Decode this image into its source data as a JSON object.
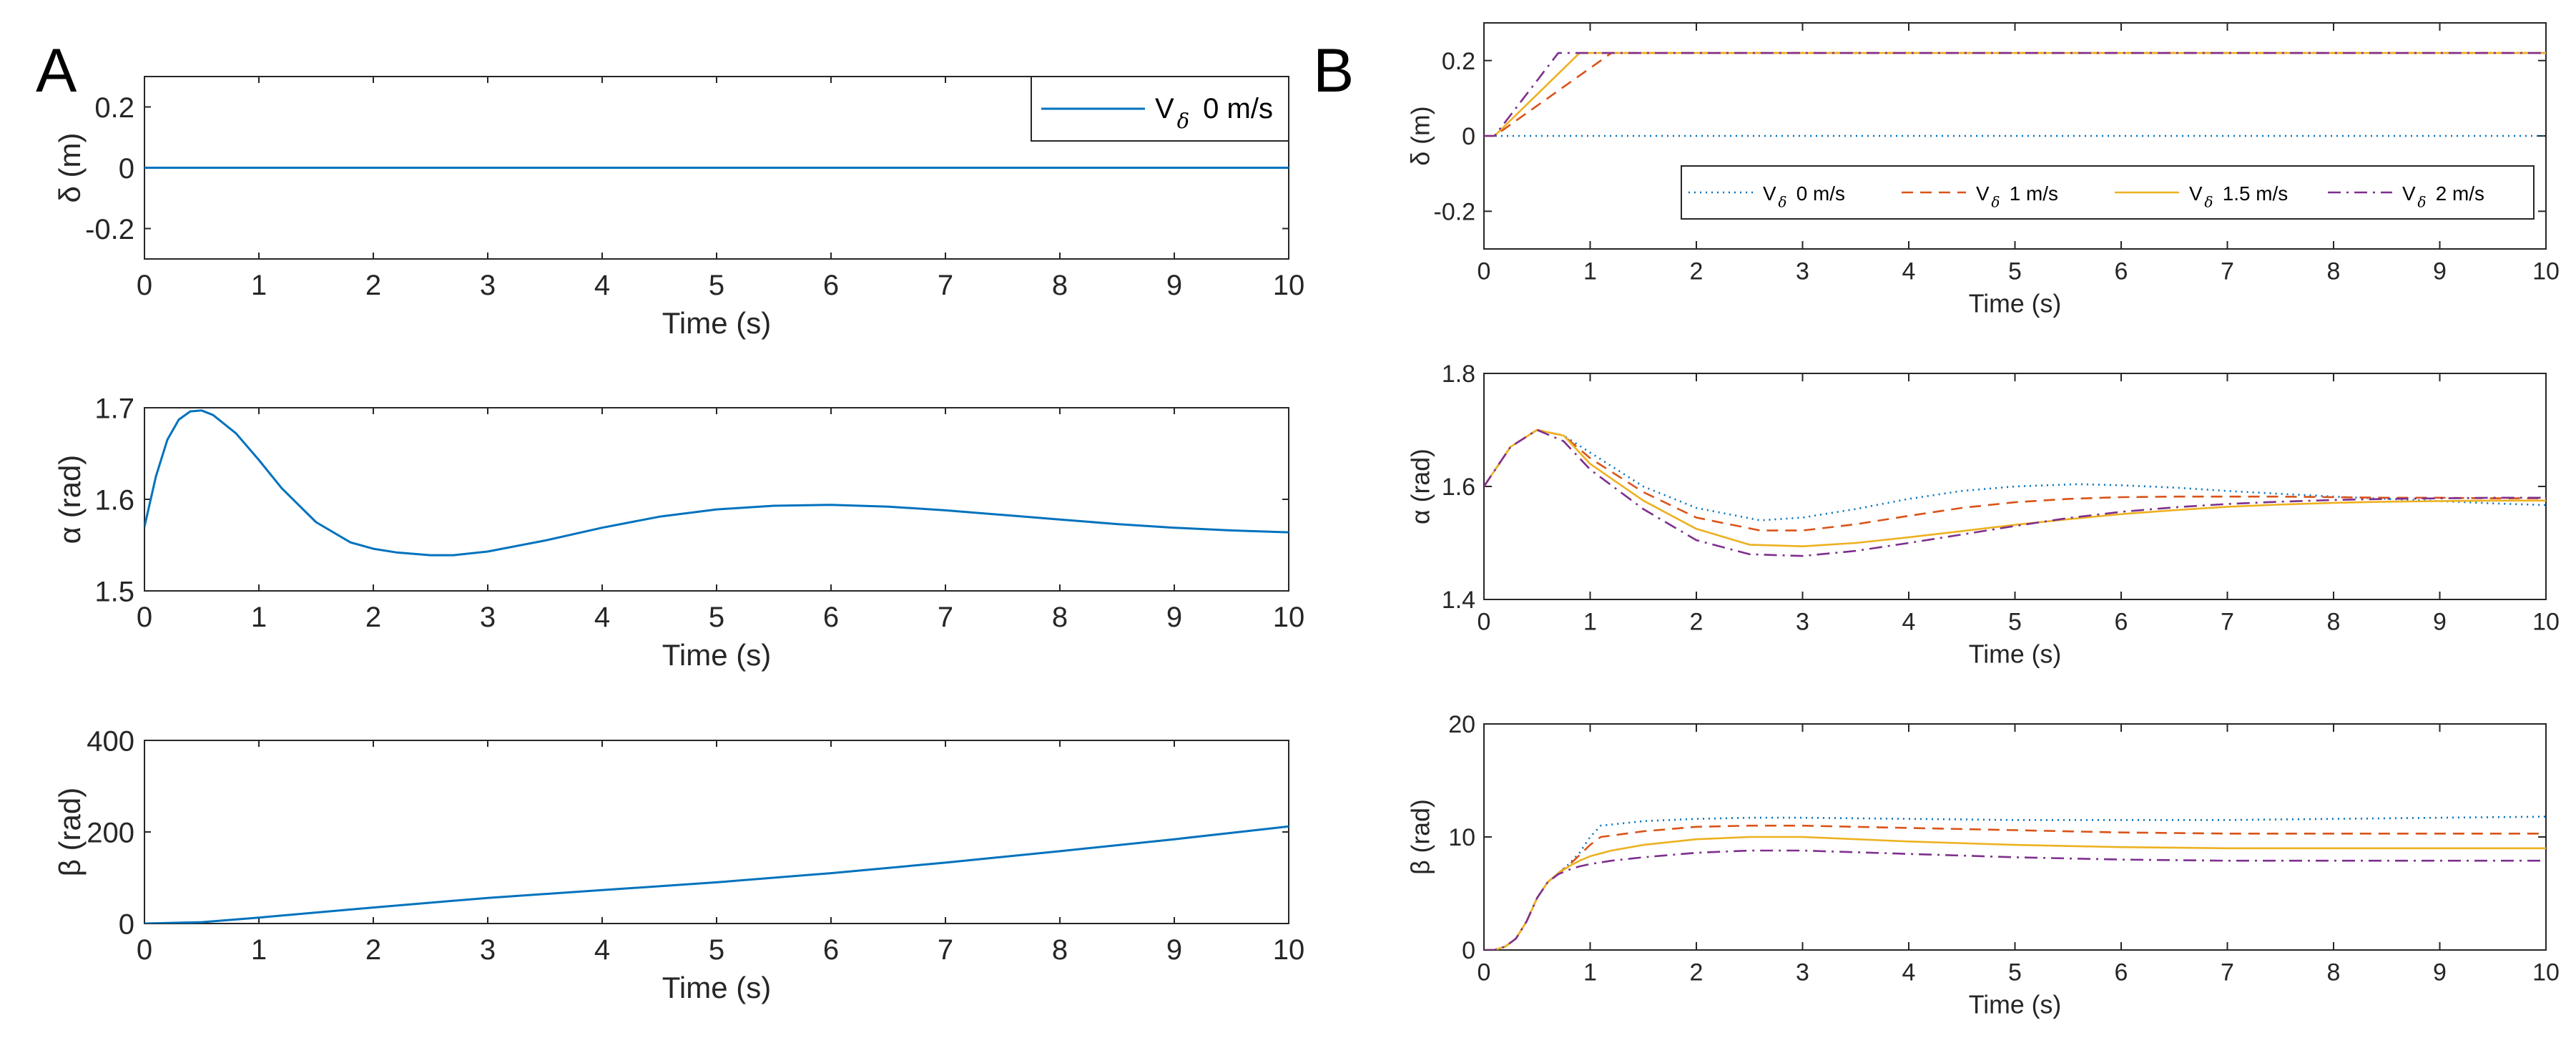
{
  "figure": {
    "panel_labels": [
      "A",
      "B"
    ],
    "series_colors": [
      "#0072BD",
      "#D95319",
      "#EDB120",
      "#7E2F8E"
    ]
  },
  "chart_data": [
    {
      "id": "A1",
      "panel": "A",
      "type": "line",
      "xlabel": "Time (s)",
      "ylabel": "δ (m)",
      "xlim": [
        0,
        10
      ],
      "ylim": [
        -0.3,
        0.3
      ],
      "xticks": [
        0,
        1,
        2,
        3,
        4,
        5,
        6,
        7,
        8,
        9,
        10
      ],
      "yticks": [
        -0.2,
        0,
        0.2
      ],
      "ytick_labels": [
        "-0.2",
        "0",
        "0.2"
      ],
      "legend": {
        "placement": "top-right",
        "entries": [
          "V δ 0 m/s"
        ]
      },
      "series": [
        {
          "name": "V δ 0 m/s",
          "color": "#0072BD",
          "style": "solid",
          "x": [
            0,
            10
          ],
          "y": [
            0,
            0
          ]
        }
      ]
    },
    {
      "id": "A2",
      "panel": "A",
      "type": "line",
      "xlabel": "Time (s)",
      "ylabel": "α (rad)",
      "xlim": [
        0,
        10
      ],
      "ylim": [
        1.5,
        1.7
      ],
      "xticks": [
        0,
        1,
        2,
        3,
        4,
        5,
        6,
        7,
        8,
        9,
        10
      ],
      "yticks": [
        1.5,
        1.6,
        1.7
      ],
      "ytick_labels": [
        "1.5",
        "1.6",
        "1.7"
      ],
      "series": [
        {
          "name": "V δ 0 m/s",
          "color": "#0072BD",
          "style": "solid",
          "x": [
            0,
            0.1,
            0.2,
            0.3,
            0.4,
            0.5,
            0.6,
            0.8,
            1.0,
            1.2,
            1.5,
            1.8,
            2.0,
            2.2,
            2.5,
            2.7,
            3.0,
            3.5,
            4.0,
            4.5,
            5.0,
            5.5,
            6.0,
            6.5,
            7.0,
            7.5,
            8.0,
            8.5,
            9.0,
            9.5,
            10.0
          ],
          "y": [
            1.57,
            1.625,
            1.665,
            1.687,
            1.696,
            1.697,
            1.692,
            1.672,
            1.643,
            1.612,
            1.575,
            1.553,
            1.546,
            1.542,
            1.539,
            1.539,
            1.543,
            1.555,
            1.569,
            1.581,
            1.589,
            1.593,
            1.594,
            1.592,
            1.588,
            1.583,
            1.578,
            1.573,
            1.569,
            1.566,
            1.564
          ]
        }
      ]
    },
    {
      "id": "A3",
      "panel": "A",
      "type": "line",
      "xlabel": "Time (s)",
      "ylabel": "β (rad)",
      "xlim": [
        0,
        10
      ],
      "ylim": [
        0,
        400
      ],
      "xticks": [
        0,
        1,
        2,
        3,
        4,
        5,
        6,
        7,
        8,
        9,
        10
      ],
      "yticks": [
        0,
        200,
        400
      ],
      "ytick_labels": [
        "0",
        "200",
        "400"
      ],
      "series": [
        {
          "name": "V δ 0 m/s",
          "color": "#0072BD",
          "style": "solid",
          "x": [
            0,
            0.5,
            1,
            1.5,
            2,
            3,
            4,
            5,
            6,
            7,
            8,
            9,
            10
          ],
          "y": [
            0,
            3,
            13,
            24,
            35,
            56,
            73,
            90,
            110,
            133,
            158,
            184,
            212
          ]
        }
      ]
    },
    {
      "id": "B1",
      "panel": "B",
      "type": "line",
      "xlabel": "Time (s)",
      "ylabel": "δ (m)",
      "xlim": [
        0,
        10
      ],
      "ylim": [
        -0.3,
        0.3
      ],
      "xticks": [
        0,
        1,
        2,
        3,
        4,
        5,
        6,
        7,
        8,
        9,
        10
      ],
      "yticks": [
        -0.2,
        0,
        0.2
      ],
      "ytick_labels": [
        "-0.2",
        "0",
        "0.2"
      ],
      "legend": {
        "placement": "bottom-inside",
        "entries": [
          "V δ 0 m/s",
          "V δ 1 m/s",
          "V δ 1.5 m/s",
          "V δ 2 m/s"
        ]
      },
      "series": [
        {
          "name": "V δ 0 m/s",
          "color": "#0072BD",
          "style": "dotted",
          "x": [
            0,
            10
          ],
          "y": [
            0,
            0
          ]
        },
        {
          "name": "V δ 1 m/s",
          "color": "#D95319",
          "style": "dashed",
          "x": [
            0,
            0.1,
            1.2,
            10
          ],
          "y": [
            0,
            0,
            0.22,
            0.22
          ]
        },
        {
          "name": "V δ 1.5 m/s",
          "color": "#EDB120",
          "style": "solid",
          "x": [
            0,
            0.1,
            0.9,
            10
          ],
          "y": [
            0,
            0,
            0.22,
            0.22
          ]
        },
        {
          "name": "V δ 2 m/s",
          "color": "#7E2F8E",
          "style": "dashdot",
          "x": [
            0,
            0.1,
            0.7,
            10
          ],
          "y": [
            0,
            0,
            0.22,
            0.22
          ]
        }
      ]
    },
    {
      "id": "B2",
      "panel": "B",
      "type": "line",
      "xlabel": "Time (s)",
      "ylabel": "α (rad)",
      "xlim": [
        0,
        10
      ],
      "ylim": [
        1.4,
        1.8
      ],
      "xticks": [
        0,
        1,
        2,
        3,
        4,
        5,
        6,
        7,
        8,
        9,
        10
      ],
      "yticks": [
        1.4,
        1.6,
        1.8
      ],
      "ytick_labels": [
        "1.4",
        "1.6",
        "1.8"
      ],
      "series": [
        {
          "name": "V δ 0 m/s",
          "color": "#0072BD",
          "style": "dotted",
          "x": [
            0,
            0.25,
            0.5,
            0.75,
            1.0,
            1.5,
            2.0,
            2.6,
            3.0,
            3.5,
            4.0,
            4.5,
            5.0,
            5.6,
            6.0,
            6.5,
            7.0,
            7.5,
            8.0,
            8.5,
            9.0,
            9.5,
            10.0
          ],
          "y": [
            1.6,
            1.67,
            1.7,
            1.69,
            1.66,
            1.6,
            1.562,
            1.54,
            1.545,
            1.56,
            1.578,
            1.592,
            1.6,
            1.604,
            1.602,
            1.598,
            1.592,
            1.587,
            1.582,
            1.578,
            1.574,
            1.57,
            1.567
          ]
        },
        {
          "name": "V δ 1 m/s",
          "color": "#D95319",
          "style": "dashed",
          "x": [
            0,
            0.25,
            0.5,
            0.75,
            1.0,
            1.5,
            2.0,
            2.6,
            3.0,
            3.5,
            4.0,
            4.5,
            5.0,
            5.5,
            6.0,
            6.5,
            7.0,
            7.5,
            8.0,
            8.5,
            9.0,
            9.5,
            10.0
          ],
          "y": [
            1.6,
            1.67,
            1.7,
            1.69,
            1.65,
            1.59,
            1.545,
            1.522,
            1.522,
            1.533,
            1.548,
            1.562,
            1.572,
            1.578,
            1.581,
            1.582,
            1.582,
            1.582,
            1.581,
            1.58,
            1.58,
            1.579,
            1.579
          ]
        },
        {
          "name": "V δ 1.5 m/s",
          "color": "#EDB120",
          "style": "solid",
          "x": [
            0,
            0.25,
            0.5,
            0.75,
            1.0,
            1.5,
            2.0,
            2.5,
            3.0,
            3.5,
            4.0,
            4.5,
            5.0,
            5.5,
            6.0,
            6.5,
            7.0,
            7.5,
            8.0,
            8.5,
            9.0,
            9.5,
            10.0
          ],
          "y": [
            1.6,
            1.67,
            1.7,
            1.69,
            1.64,
            1.575,
            1.525,
            1.497,
            1.494,
            1.5,
            1.51,
            1.521,
            1.532,
            1.542,
            1.551,
            1.558,
            1.564,
            1.568,
            1.571,
            1.573,
            1.574,
            1.575,
            1.575
          ]
        },
        {
          "name": "V δ 2 m/s",
          "color": "#7E2F8E",
          "style": "dashdot",
          "x": [
            0,
            0.25,
            0.5,
            0.75,
            1.0,
            1.5,
            2.0,
            2.5,
            3.0,
            3.5,
            4.0,
            4.5,
            5.0,
            5.5,
            6.0,
            6.5,
            7.0,
            7.5,
            8.0,
            8.5,
            9.0,
            9.5,
            10.0
          ],
          "y": [
            1.6,
            1.67,
            1.7,
            1.68,
            1.63,
            1.56,
            1.505,
            1.48,
            1.477,
            1.486,
            1.5,
            1.515,
            1.53,
            1.544,
            1.555,
            1.563,
            1.569,
            1.573,
            1.576,
            1.578,
            1.579,
            1.58,
            1.58
          ]
        }
      ]
    },
    {
      "id": "B3",
      "panel": "B",
      "type": "line",
      "xlabel": "Time (s)",
      "ylabel": "β (rad)",
      "xlim": [
        0,
        10
      ],
      "ylim": [
        0,
        20
      ],
      "xticks": [
        0,
        1,
        2,
        3,
        4,
        5,
        6,
        7,
        8,
        9,
        10
      ],
      "yticks": [
        0,
        10,
        20
      ],
      "ytick_labels": [
        "0",
        "10",
        "20"
      ],
      "series": [
        {
          "name": "V δ 0 m/s",
          "color": "#0072BD",
          "style": "dotted",
          "x": [
            0,
            0.1,
            0.2,
            0.3,
            0.4,
            0.5,
            0.6,
            0.7,
            0.8,
            0.9,
            1.0,
            1.1,
            1.5,
            2.0,
            2.5,
            3.0,
            4.0,
            5.0,
            6.0,
            7.0,
            8.0,
            9.0,
            10.0
          ],
          "y": [
            0,
            0,
            0.3,
            1.0,
            2.5,
            4.6,
            6.0,
            6.8,
            7.6,
            8.6,
            10.0,
            11.0,
            11.4,
            11.6,
            11.7,
            11.7,
            11.6,
            11.5,
            11.5,
            11.5,
            11.6,
            11.7,
            11.8
          ]
        },
        {
          "name": "V δ 1 m/s",
          "color": "#D95319",
          "style": "dashed",
          "x": [
            0,
            0.1,
            0.2,
            0.3,
            0.4,
            0.5,
            0.6,
            0.7,
            0.8,
            0.9,
            1.0,
            1.1,
            1.5,
            2.0,
            2.5,
            3.0,
            4.0,
            5.0,
            6.0,
            7.0,
            8.0,
            9.0,
            10.0
          ],
          "y": [
            0,
            0,
            0.3,
            1.0,
            2.5,
            4.6,
            6.0,
            6.8,
            7.5,
            8.4,
            9.3,
            10.0,
            10.5,
            10.9,
            11.0,
            11.0,
            10.8,
            10.6,
            10.4,
            10.3,
            10.3,
            10.3,
            10.3
          ]
        },
        {
          "name": "V δ 1.5 m/s",
          "color": "#EDB120",
          "style": "solid",
          "x": [
            0,
            0.1,
            0.2,
            0.3,
            0.4,
            0.5,
            0.6,
            0.7,
            0.8,
            0.9,
            1.0,
            1.2,
            1.5,
            2.0,
            2.5,
            3.0,
            4.0,
            5.0,
            6.0,
            7.0,
            8.0,
            9.0,
            10.0
          ],
          "y": [
            0,
            0,
            0.3,
            1.0,
            2.5,
            4.6,
            6.0,
            6.8,
            7.4,
            7.9,
            8.3,
            8.8,
            9.3,
            9.8,
            10.0,
            10.0,
            9.6,
            9.3,
            9.1,
            9.0,
            9.0,
            9.0,
            9.0
          ]
        },
        {
          "name": "V δ 2 m/s",
          "color": "#7E2F8E",
          "style": "dashdot",
          "x": [
            0,
            0.1,
            0.2,
            0.3,
            0.4,
            0.5,
            0.6,
            0.7,
            0.8,
            0.9,
            1.0,
            1.2,
            1.5,
            2.0,
            2.5,
            3.0,
            4.0,
            5.0,
            6.0,
            7.0,
            8.0,
            9.0,
            10.0
          ],
          "y": [
            0,
            0,
            0.3,
            1.0,
            2.5,
            4.6,
            6.0,
            6.7,
            7.1,
            7.4,
            7.6,
            7.9,
            8.2,
            8.6,
            8.8,
            8.8,
            8.5,
            8.2,
            8.0,
            7.9,
            7.9,
            7.9,
            7.9
          ]
        }
      ]
    }
  ]
}
